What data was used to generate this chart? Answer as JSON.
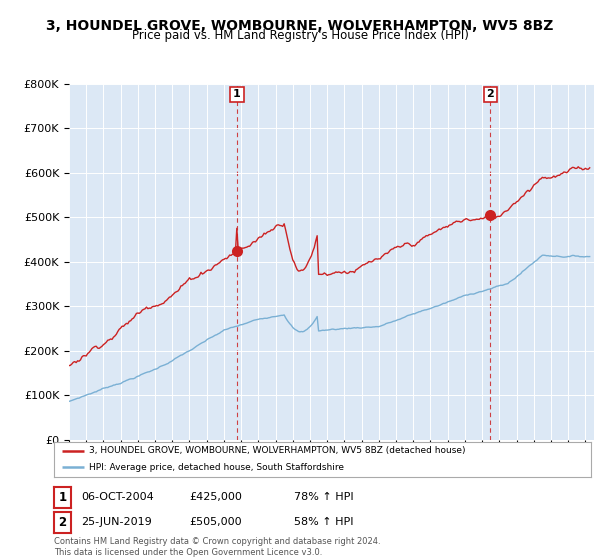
{
  "title": "3, HOUNDEL GROVE, WOMBOURNE, WOLVERHAMPTON, WV5 8BZ",
  "subtitle": "Price paid vs. HM Land Registry's House Price Index (HPI)",
  "xlim_start": 1995.0,
  "xlim_end": 2025.5,
  "ylim": [
    0,
    800000
  ],
  "yticks": [
    0,
    100000,
    200000,
    300000,
    400000,
    500000,
    600000,
    700000,
    800000
  ],
  "ytick_labels": [
    "£0",
    "£100K",
    "£200K",
    "£300K",
    "£400K",
    "£500K",
    "£600K",
    "£700K",
    "£800K"
  ],
  "xticks": [
    1995,
    1996,
    1997,
    1998,
    1999,
    2000,
    2001,
    2002,
    2003,
    2004,
    2005,
    2006,
    2007,
    2008,
    2009,
    2010,
    2011,
    2012,
    2013,
    2014,
    2015,
    2016,
    2017,
    2018,
    2019,
    2020,
    2021,
    2022,
    2023,
    2024,
    2025
  ],
  "sale1_x": 2004.76,
  "sale1_y": 425000,
  "sale1_label": "1",
  "sale1_date": "06-OCT-2004",
  "sale1_price": "£425,000",
  "sale1_hpi": "78% ↑ HPI",
  "sale2_x": 2019.48,
  "sale2_y": 505000,
  "sale2_label": "2",
  "sale2_date": "25-JUN-2019",
  "sale2_price": "£505,000",
  "sale2_hpi": "58% ↑ HPI",
  "red_color": "#cc2222",
  "blue_color": "#7ab0d4",
  "bg_color": "#dce8f5",
  "plot_bg": "#ffffff",
  "legend_entry1": "3, HOUNDEL GROVE, WOMBOURNE, WOLVERHAMPTON, WV5 8BZ (detached house)",
  "legend_entry2": "HPI: Average price, detached house, South Staffordshire",
  "footer": "Contains HM Land Registry data © Crown copyright and database right 2024.\nThis data is licensed under the Open Government Licence v3.0."
}
